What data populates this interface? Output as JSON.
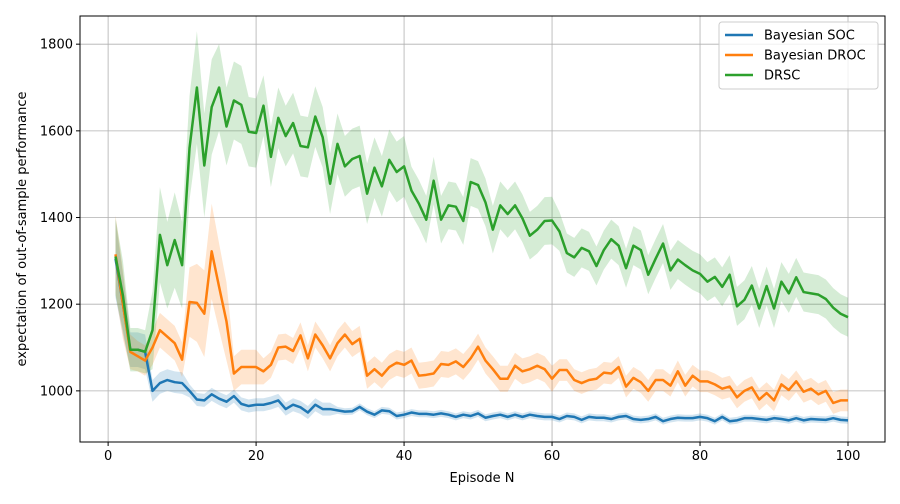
{
  "chart_data": {
    "type": "line",
    "title": "",
    "xlabel": "Episode N",
    "ylabel": "expectation of out-of-sample performance",
    "xlim": [
      -3.8,
      105
    ],
    "ylim": [
      882,
      1865
    ],
    "xticks": [
      0,
      20,
      40,
      60,
      80,
      100
    ],
    "yticks": [
      1000,
      1200,
      1400,
      1600,
      1800
    ],
    "grid": true,
    "legend_position": "top-right",
    "x_start": 1,
    "series": [
      {
        "name": "Bayesian SOC",
        "color": "#1f77b4",
        "values": [
          1305,
          1200,
          1095,
          1095,
          1090,
          1000,
          1018,
          1025,
          1020,
          1018,
          1000,
          980,
          978,
          992,
          982,
          975,
          988,
          970,
          965,
          968,
          968,
          972,
          978,
          958,
          968,
          962,
          950,
          968,
          958,
          958,
          955,
          952,
          953,
          963,
          952,
          945,
          955,
          953,
          942,
          945,
          950,
          947,
          947,
          945,
          948,
          945,
          940,
          945,
          942,
          948,
          938,
          942,
          945,
          940,
          945,
          940,
          945,
          942,
          940,
          940,
          935,
          942,
          940,
          933,
          940,
          938,
          938,
          935,
          940,
          942,
          935,
          933,
          935,
          940,
          930,
          935,
          938,
          937,
          937,
          940,
          937,
          930,
          940,
          930,
          932,
          937,
          937,
          935,
          933,
          937,
          935,
          932,
          937,
          932,
          935,
          934,
          933,
          937,
          933,
          932
        ],
        "band": [
          90,
          70,
          40,
          40,
          40,
          25,
          25,
          25,
          25,
          25,
          15,
          15,
          15,
          15,
          15,
          15,
          15,
          15,
          15,
          15,
          15,
          15,
          15,
          15,
          15,
          15,
          15,
          15,
          15,
          15,
          8,
          8,
          8,
          8,
          8,
          8,
          8,
          8,
          8,
          8,
          8,
          8,
          8,
          8,
          8,
          8,
          8,
          8,
          8,
          8,
          8,
          8,
          8,
          8,
          8,
          8,
          8,
          8,
          8,
          8,
          8,
          8,
          8,
          8,
          8,
          8,
          8,
          8,
          8,
          8,
          8,
          8,
          8,
          8,
          8,
          8,
          8,
          8,
          8,
          8,
          8,
          8,
          8,
          8,
          8,
          8,
          8,
          8,
          8,
          8,
          8,
          8,
          8,
          8,
          8,
          8,
          8,
          8,
          8,
          8
        ]
      },
      {
        "name": "Bayesian DROC",
        "color": "#ff7f0e",
        "values": [
          1315,
          1200,
          1090,
          1080,
          1070,
          1100,
          1140,
          1125,
          1110,
          1072,
          1205,
          1203,
          1178,
          1322,
          1240,
          1160,
          1040,
          1055,
          1055,
          1055,
          1045,
          1060,
          1100,
          1102,
          1092,
          1128,
          1075,
          1130,
          1105,
          1075,
          1110,
          1130,
          1108,
          1120,
          1035,
          1050,
          1035,
          1055,
          1065,
          1060,
          1070,
          1035,
          1037,
          1040,
          1062,
          1060,
          1068,
          1055,
          1075,
          1102,
          1070,
          1050,
          1028,
          1028,
          1058,
          1045,
          1050,
          1058,
          1050,
          1028,
          1048,
          1048,
          1025,
          1018,
          1025,
          1028,
          1042,
          1040,
          1055,
          1010,
          1030,
          1020,
          1000,
          1025,
          1025,
          1012,
          1045,
          1012,
          1035,
          1022,
          1022,
          1015,
          1005,
          1010,
          985,
          1000,
          1008,
          980,
          995,
          978,
          1015,
          1002,
          1022,
          998,
          1005,
          992,
          1000,
          972,
          978,
          978
        ],
        "band": [
          90,
          80,
          40,
          35,
          35,
          40,
          40,
          40,
          40,
          40,
          80,
          90,
          100,
          110,
          100,
          90,
          40,
          40,
          40,
          40,
          30,
          30,
          30,
          30,
          30,
          30,
          30,
          30,
          30,
          30,
          30,
          30,
          30,
          30,
          30,
          30,
          30,
          30,
          30,
          30,
          30,
          30,
          30,
          30,
          30,
          30,
          30,
          30,
          30,
          30,
          30,
          30,
          30,
          30,
          30,
          30,
          30,
          30,
          30,
          30,
          25,
          25,
          25,
          25,
          25,
          25,
          25,
          25,
          25,
          25,
          25,
          25,
          25,
          25,
          25,
          25,
          25,
          25,
          25,
          25,
          25,
          25,
          25,
          25,
          25,
          25,
          25,
          25,
          25,
          25,
          25,
          25,
          25,
          25,
          25,
          25,
          25,
          25,
          25,
          25
        ]
      },
      {
        "name": "DRSC",
        "color": "#2ca02c",
        "values": [
          1310,
          1220,
          1095,
          1095,
          1090,
          1140,
          1360,
          1290,
          1348,
          1290,
          1560,
          1700,
          1520,
          1655,
          1700,
          1610,
          1670,
          1660,
          1598,
          1595,
          1658,
          1540,
          1630,
          1588,
          1618,
          1565,
          1562,
          1633,
          1585,
          1478,
          1570,
          1518,
          1535,
          1542,
          1455,
          1515,
          1472,
          1533,
          1505,
          1518,
          1462,
          1432,
          1395,
          1485,
          1395,
          1428,
          1425,
          1392,
          1482,
          1475,
          1435,
          1372,
          1428,
          1408,
          1428,
          1398,
          1358,
          1372,
          1392,
          1393,
          1368,
          1318,
          1308,
          1330,
          1322,
          1288,
          1325,
          1350,
          1335,
          1283,
          1335,
          1325,
          1268,
          1305,
          1340,
          1278,
          1303,
          1290,
          1278,
          1270,
          1252,
          1263,
          1240,
          1268,
          1195,
          1210,
          1243,
          1190,
          1242,
          1190,
          1252,
          1225,
          1262,
          1228,
          1225,
          1222,
          1212,
          1192,
          1178,
          1170
        ],
        "band": [
          90,
          80,
          50,
          50,
          50,
          90,
          110,
          100,
          110,
          100,
          120,
          130,
          120,
          110,
          100,
          90,
          90,
          90,
          80,
          80,
          70,
          70,
          70,
          70,
          70,
          70,
          70,
          70,
          70,
          70,
          70,
          70,
          70,
          70,
          70,
          70,
          70,
          70,
          70,
          70,
          55,
          55,
          55,
          55,
          55,
          55,
          55,
          55,
          55,
          55,
          55,
          55,
          55,
          55,
          55,
          55,
          55,
          55,
          55,
          55,
          45,
          45,
          45,
          45,
          45,
          45,
          45,
          45,
          45,
          45,
          45,
          45,
          45,
          45,
          45,
          45,
          45,
          45,
          45,
          45,
          45,
          45,
          45,
          45,
          45,
          45,
          45,
          45,
          45,
          45,
          45,
          45,
          45,
          45,
          45,
          45,
          45,
          45,
          45,
          45
        ]
      }
    ]
  }
}
